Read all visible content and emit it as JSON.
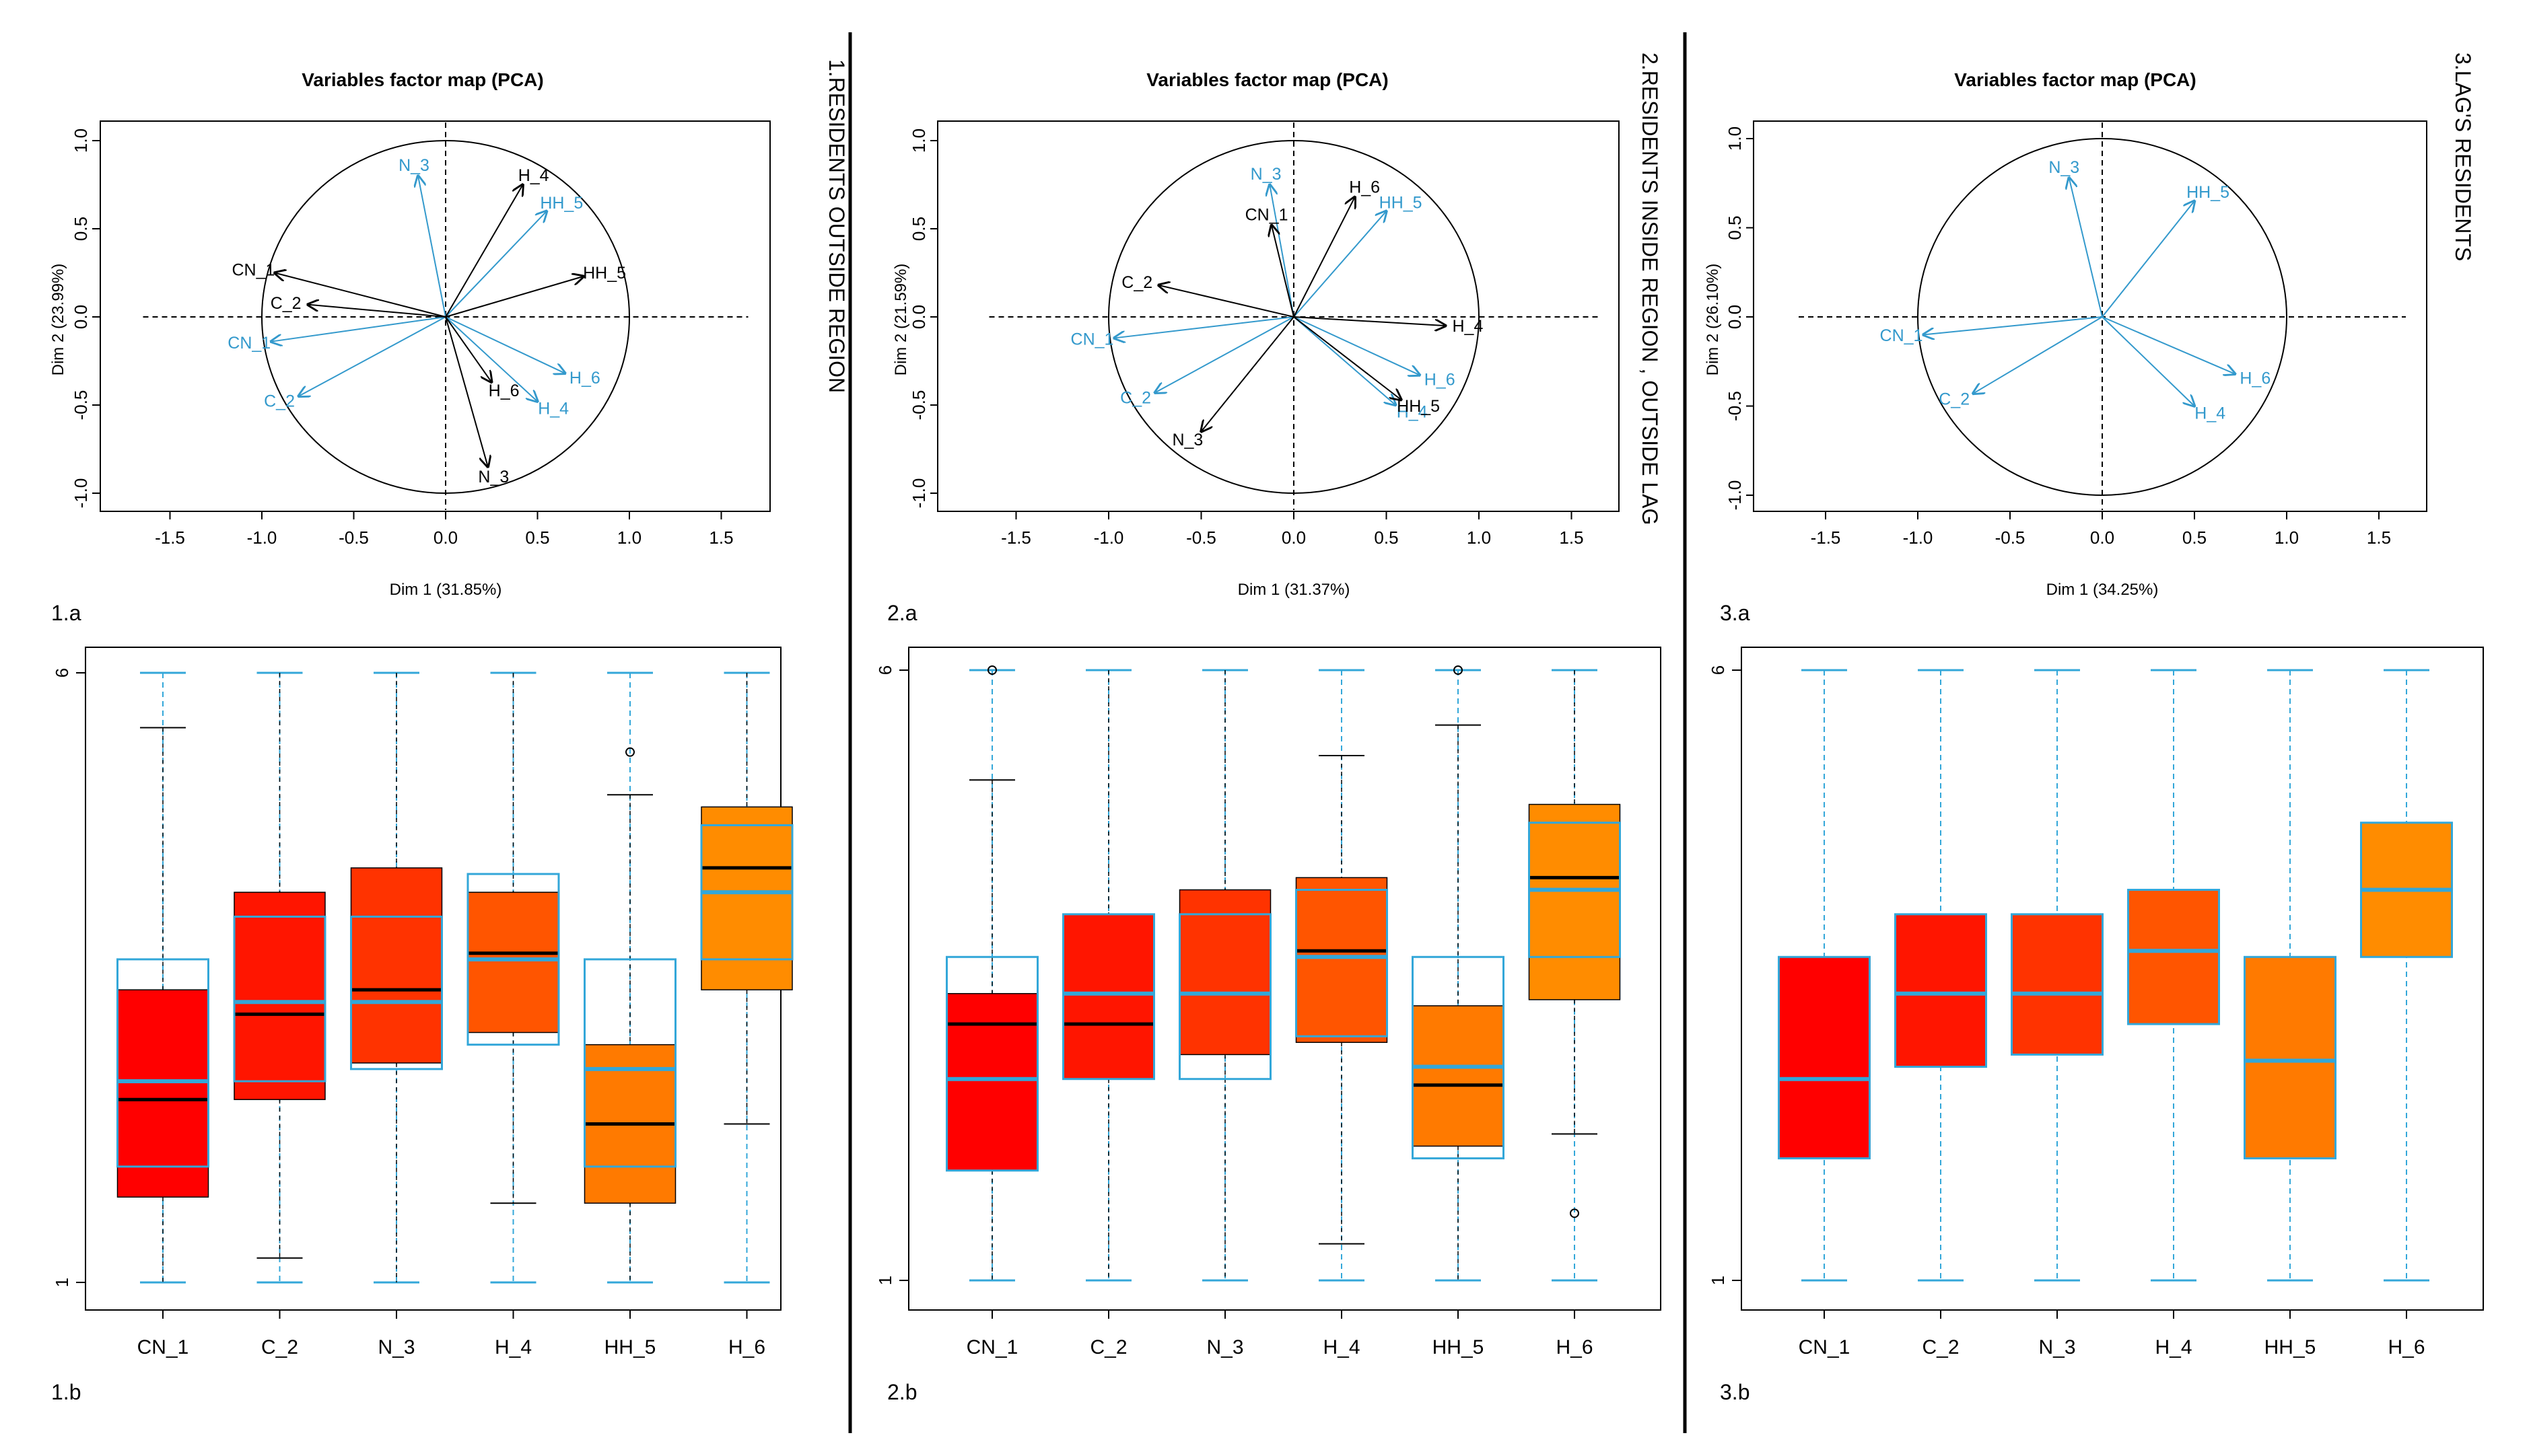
{
  "colors": {
    "black_arrow": "#000000",
    "blue_arrow": "#3399cc",
    "box_cn1": "#ff0000",
    "box_c2": "#ff1500",
    "box_n3": "#ff3300",
    "box_h4": "#ff5500",
    "box_hh5": "#ff7a00",
    "box_h6": "#ff8c00",
    "blue_overlay": "#33a7d9"
  },
  "panels": [
    {
      "side_label": "1.RESIDENTS OUTSIDE REGION",
      "pca_label": "1.a",
      "box_label": "1.b"
    },
    {
      "side_label": "2.RESIDENTS INSIDE REGION ,  OUTSIDE LAG",
      "pca_label": "2.a",
      "box_label": "2.b"
    },
    {
      "side_label": "3.LAG'S RESIDENTS",
      "pca_label": "3.a",
      "box_label": "3.b"
    }
  ],
  "chart_data": [
    {
      "type": "scatter",
      "subtype": "pca-variables-factor-map",
      "title": "Variables factor map (PCA)",
      "xlabel": "Dim 1 (31.85%)",
      "ylabel": "Dim 2 (23.99%)",
      "xlim": [
        -1.5,
        1.5
      ],
      "ylim": [
        -1.0,
        1.0
      ],
      "xticks": [
        "-1.5",
        "-1.0",
        "-0.5",
        "0.0",
        "0.5",
        "1.0",
        "1.5"
      ],
      "yticks": [
        "-1.0",
        "-0.5",
        "0.0",
        "0.5",
        "1.0"
      ],
      "black_vectors": [
        {
          "name": "CN_1",
          "x": -0.93,
          "y": 0.25
        },
        {
          "name": "C_2",
          "x": -0.75,
          "y": 0.07
        },
        {
          "name": "N_3",
          "x": 0.23,
          "y": -0.85
        },
        {
          "name": "H_4",
          "x": 0.42,
          "y": 0.75
        },
        {
          "name": "HH_5",
          "x": 0.75,
          "y": 0.23
        },
        {
          "name": "H_6",
          "x": 0.25,
          "y": -0.37
        }
      ],
      "blue_vectors": [
        {
          "name": "CN_1",
          "x": -0.95,
          "y": -0.14
        },
        {
          "name": "C_2",
          "x": -0.8,
          "y": -0.45
        },
        {
          "name": "N_3",
          "x": -0.15,
          "y": 0.8
        },
        {
          "name": "H_4",
          "x": 0.5,
          "y": -0.48
        },
        {
          "name": "HH_5",
          "x": 0.55,
          "y": 0.6
        },
        {
          "name": "H_6",
          "x": 0.65,
          "y": -0.32
        }
      ]
    },
    {
      "type": "scatter",
      "subtype": "pca-variables-factor-map",
      "title": "Variables factor map (PCA)",
      "xlabel": "Dim 1 (31.37%)",
      "ylabel": "Dim 2 (21.59%)",
      "xlim": [
        -1.5,
        1.5
      ],
      "ylim": [
        -1.0,
        1.0
      ],
      "xticks": [
        "-1.5",
        "-1.0",
        "-0.5",
        "0.0",
        "0.5",
        "1.0",
        "1.5"
      ],
      "yticks": [
        "-1.0",
        "-0.5",
        "0.0",
        "0.5",
        "1.0"
      ],
      "black_vectors": [
        {
          "name": "C_2",
          "x": -0.73,
          "y": 0.18
        },
        {
          "name": "CN_1",
          "x": -0.12,
          "y": 0.52
        },
        {
          "name": "N_3",
          "x": -0.5,
          "y": -0.65
        },
        {
          "name": "H_4",
          "x": 0.82,
          "y": -0.05
        },
        {
          "name": "HH_5",
          "x": 0.58,
          "y": -0.47
        },
        {
          "name": "H_6",
          "x": 0.33,
          "y": 0.68
        }
      ],
      "blue_vectors": [
        {
          "name": "CN_1",
          "x": -0.97,
          "y": -0.12
        },
        {
          "name": "C_2",
          "x": -0.75,
          "y": -0.43
        },
        {
          "name": "N_3",
          "x": -0.13,
          "y": 0.75
        },
        {
          "name": "H_4",
          "x": 0.55,
          "y": -0.5
        },
        {
          "name": "HH_5",
          "x": 0.5,
          "y": 0.6
        },
        {
          "name": "H_6",
          "x": 0.68,
          "y": -0.33
        }
      ]
    },
    {
      "type": "scatter",
      "subtype": "pca-variables-factor-map",
      "title": "Variables factor map (PCA)",
      "xlabel": "Dim 1 (34.25%)",
      "ylabel": "Dim 2 (26.10%)",
      "xlim": [
        -1.5,
        1.5
      ],
      "ylim": [
        -1.0,
        1.0
      ],
      "xticks": [
        "-1.5",
        "-1.0",
        "-0.5",
        "0.0",
        "0.5",
        "1.0",
        "1.5"
      ],
      "yticks": [
        "-1.0",
        "-0.5",
        "0.0",
        "0.5",
        "1.0"
      ],
      "black_vectors": [],
      "blue_vectors": [
        {
          "name": "CN_1",
          "x": -0.97,
          "y": -0.1
        },
        {
          "name": "C_2",
          "x": -0.7,
          "y": -0.43
        },
        {
          "name": "N_3",
          "x": -0.18,
          "y": 0.78
        },
        {
          "name": "H_4",
          "x": 0.5,
          "y": -0.5
        },
        {
          "name": "HH_5",
          "x": 0.5,
          "y": 0.65
        },
        {
          "name": "H_6",
          "x": 0.72,
          "y": -0.32
        }
      ]
    },
    {
      "type": "boxplot",
      "categories": [
        "CN_1",
        "C_2",
        "N_3",
        "H_4",
        "HH_5",
        "H_6"
      ],
      "ylim": [
        1,
        6
      ],
      "yticks": [
        "1",
        "6"
      ],
      "boxes": [
        {
          "whisker_low": 1,
          "q1": 1.7,
          "median": 2.5,
          "q3": 3.4,
          "whisker_high": 5.55
        },
        {
          "whisker_low": 1.2,
          "q1": 2.5,
          "median": 3.2,
          "q3": 4.2,
          "whisker_high": 6
        },
        {
          "whisker_low": 1,
          "q1": 2.8,
          "median": 3.4,
          "q3": 4.4,
          "whisker_high": 6
        },
        {
          "whisker_low": 1.65,
          "q1": 3.05,
          "median": 3.7,
          "q3": 4.2,
          "whisker_high": 6
        },
        {
          "whisker_low": 1,
          "q1": 1.65,
          "median": 2.3,
          "q3": 2.95,
          "whisker_high": 5.0
        },
        {
          "whisker_low": 2.3,
          "q1": 3.4,
          "median": 4.4,
          "q3": 4.9,
          "whisker_high": 6
        }
      ],
      "outliers": [
        {
          "category": "HH_5",
          "value": 5.35
        }
      ],
      "reference_boxes": [
        {
          "whisker_low": 1,
          "q1": 1.95,
          "median": 2.65,
          "q3": 3.65,
          "whisker_high": 6
        },
        {
          "whisker_low": 1,
          "q1": 2.65,
          "median": 3.3,
          "q3": 4.0,
          "whisker_high": 6
        },
        {
          "whisker_low": 1,
          "q1": 2.75,
          "median": 3.3,
          "q3": 4.0,
          "whisker_high": 6
        },
        {
          "whisker_low": 1,
          "q1": 2.95,
          "median": 3.65,
          "q3": 4.35,
          "whisker_high": 6
        },
        {
          "whisker_low": 1,
          "q1": 1.95,
          "median": 2.75,
          "q3": 3.65,
          "whisker_high": 6
        },
        {
          "whisker_low": 1,
          "q1": 3.65,
          "median": 4.2,
          "q3": 4.75,
          "whisker_high": 6
        }
      ]
    },
    {
      "type": "boxplot",
      "categories": [
        "CN_1",
        "C_2",
        "N_3",
        "H_4",
        "HH_5",
        "H_6"
      ],
      "ylim": [
        1,
        6
      ],
      "yticks": [
        "1",
        "6"
      ],
      "boxes": [
        {
          "whisker_low": 1,
          "q1": 1.9,
          "median": 3.1,
          "q3": 3.35,
          "whisker_high": 5.1
        },
        {
          "whisker_low": 1,
          "q1": 2.65,
          "median": 3.1,
          "q3": 4.0,
          "whisker_high": 6
        },
        {
          "whisker_low": 1,
          "q1": 2.85,
          "median": 3.35,
          "q3": 4.2,
          "whisker_high": 6
        },
        {
          "whisker_low": 1.3,
          "q1": 2.95,
          "median": 3.7,
          "q3": 4.3,
          "whisker_high": 5.3
        },
        {
          "whisker_low": 1,
          "q1": 2.1,
          "median": 2.6,
          "q3": 3.25,
          "whisker_high": 5.55
        },
        {
          "whisker_low": 2.2,
          "q1": 3.3,
          "median": 4.3,
          "q3": 4.9,
          "whisker_high": 6
        }
      ],
      "outliers": [
        {
          "category": "CN_1",
          "value": 6
        },
        {
          "category": "HH_5",
          "value": 6
        },
        {
          "category": "H_6",
          "value": 1.55
        }
      ],
      "reference_boxes": [
        {
          "whisker_low": 1,
          "q1": 1.9,
          "median": 2.65,
          "q3": 3.65,
          "whisker_high": 6
        },
        {
          "whisker_low": 1,
          "q1": 2.65,
          "median": 3.35,
          "q3": 4.0,
          "whisker_high": 6
        },
        {
          "whisker_low": 1,
          "q1": 2.65,
          "median": 3.35,
          "q3": 4.0,
          "whisker_high": 6
        },
        {
          "whisker_low": 1,
          "q1": 3.0,
          "median": 3.65,
          "q3": 4.2,
          "whisker_high": 6
        },
        {
          "whisker_low": 1,
          "q1": 2.0,
          "median": 2.75,
          "q3": 3.65,
          "whisker_high": 6
        },
        {
          "whisker_low": 1,
          "q1": 3.65,
          "median": 4.2,
          "q3": 4.75,
          "whisker_high": 6
        }
      ]
    },
    {
      "type": "boxplot",
      "categories": [
        "CN_1",
        "C_2",
        "N_3",
        "H_4",
        "HH_5",
        "H_6"
      ],
      "ylim": [
        1,
        6
      ],
      "yticks": [
        "1",
        "6"
      ],
      "boxes": [
        {
          "whisker_low": 1,
          "q1": 2.0,
          "median": 2.65,
          "q3": 3.65,
          "whisker_high": 6
        },
        {
          "whisker_low": 1,
          "q1": 2.75,
          "median": 3.35,
          "q3": 4.0,
          "whisker_high": 6
        },
        {
          "whisker_low": 1,
          "q1": 2.85,
          "median": 3.35,
          "q3": 4.0,
          "whisker_high": 6
        },
        {
          "whisker_low": 1,
          "q1": 3.1,
          "median": 3.7,
          "q3": 4.2,
          "whisker_high": 6
        },
        {
          "whisker_low": 1,
          "q1": 2.0,
          "median": 2.8,
          "q3": 3.65,
          "whisker_high": 6
        },
        {
          "whisker_low": 1,
          "q1": 3.65,
          "median": 4.2,
          "q3": 4.75,
          "whisker_high": 6
        }
      ],
      "outliers": [],
      "reference_boxes": []
    }
  ]
}
